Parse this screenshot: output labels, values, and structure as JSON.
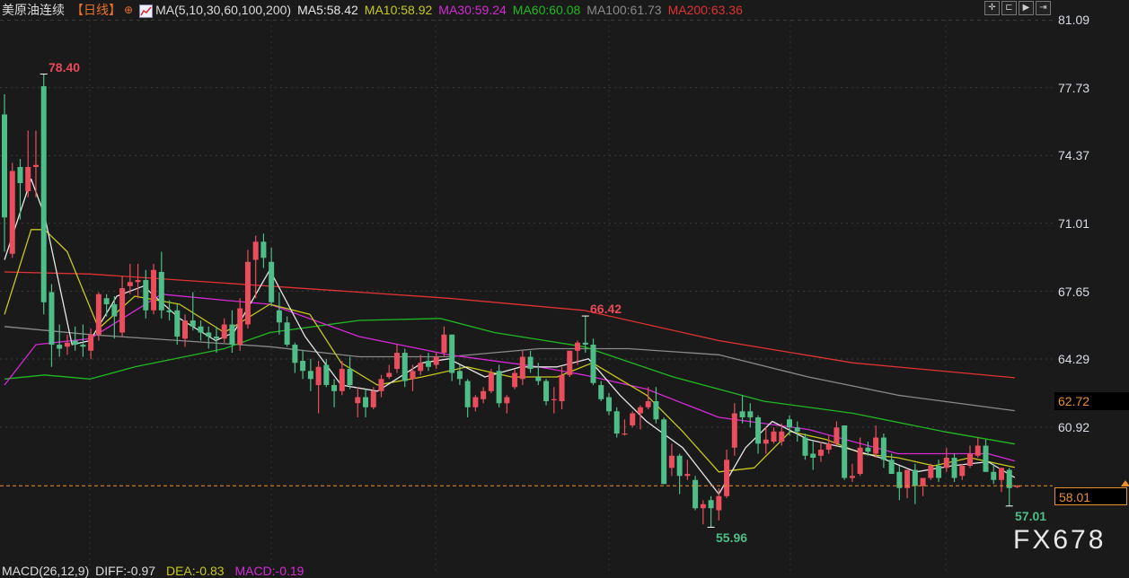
{
  "header": {
    "instrument": "美原油连续",
    "period": "【日线】",
    "ma_params": "MA(5,10,30,60,100,200)",
    "ma_values": [
      {
        "label": "MA5:58.42",
        "color": "#e6e6e6"
      },
      {
        "label": "MA10:58.92",
        "color": "#c8c81e"
      },
      {
        "label": "MA30:59.24",
        "color": "#d42ad4"
      },
      {
        "label": "MA60:60.08",
        "color": "#22b822"
      },
      {
        "label": "MA100:61.73",
        "color": "#8a8a8a"
      },
      {
        "label": "MA200:63.36",
        "color": "#e03232"
      }
    ],
    "toolbar_icons": [
      "crosshair-icon",
      "zoom-left-icon",
      "play-icon",
      "exit-right-icon"
    ]
  },
  "colors": {
    "up": "#ea4d5c",
    "down": "#4fbd88",
    "background": "#1a1a1a",
    "last_price": "#e8902e"
  },
  "price_axis": {
    "ticks": [
      "81.09",
      "77.73",
      "74.37",
      "71.01",
      "67.65",
      "64.29",
      "60.92"
    ],
    "highlight_label": "62.72",
    "last_price_label": "58.01"
  },
  "annotations": {
    "high": "78.40",
    "mid_high": "66.42",
    "low": "55.96",
    "recent_low": "57.01"
  },
  "watermark": "FX678",
  "indicator": {
    "title": "MACD(26,12,9)",
    "diff": "DIFF:-0.97",
    "dea": "DEA:-0.83",
    "macd": "MACD:-0.19"
  },
  "chart_data": {
    "type": "candlestick",
    "ylim": [
      55.0,
      81.09
    ],
    "last_price": 58.01,
    "ohlc": [
      [
        76.4,
        77.4,
        69.6,
        71.3
      ],
      [
        69.5,
        74.0,
        69.3,
        73.6
      ],
      [
        73.8,
        74.2,
        71.2,
        73.0
      ],
      [
        72.6,
        75.6,
        72.3,
        73.8
      ],
      [
        73.8,
        75.6,
        72.3,
        73.9
      ],
      [
        77.8,
        78.4,
        66.5,
        67.1
      ],
      [
        67.6,
        68.0,
        63.9,
        65.0
      ],
      [
        65.0,
        66.0,
        64.4,
        64.8
      ],
      [
        64.9,
        65.5,
        64.5,
        65.1
      ],
      [
        65.2,
        65.9,
        64.7,
        65.0
      ],
      [
        65.0,
        66.0,
        64.4,
        64.9
      ],
      [
        64.7,
        65.8,
        64.3,
        65.5
      ],
      [
        65.5,
        67.6,
        65.2,
        67.5
      ],
      [
        67.3,
        67.5,
        66.4,
        67.0
      ],
      [
        67.0,
        67.4,
        65.3,
        66.4
      ],
      [
        65.6,
        68.4,
        65.4,
        67.8
      ],
      [
        67.9,
        69.0,
        67.5,
        68.1
      ],
      [
        68.1,
        69.0,
        67.3,
        68.2
      ],
      [
        68.2,
        68.7,
        66.3,
        66.7
      ],
      [
        66.7,
        69.0,
        66.5,
        68.7
      ],
      [
        68.6,
        69.6,
        66.3,
        66.7
      ],
      [
        66.7,
        67.2,
        66.2,
        66.6
      ],
      [
        66.7,
        67.0,
        65.0,
        65.4
      ],
      [
        65.3,
        66.5,
        64.9,
        66.2
      ],
      [
        66.2,
        67.6,
        65.7,
        65.9
      ],
      [
        65.9,
        66.2,
        65.2,
        65.6
      ],
      [
        65.6,
        65.9,
        64.8,
        65.4
      ],
      [
        65.4,
        65.9,
        64.6,
        65.3
      ],
      [
        65.3,
        66.3,
        65.1,
        66.0
      ],
      [
        66.0,
        66.7,
        64.6,
        65.0
      ],
      [
        65.0,
        67.3,
        64.7,
        66.8
      ],
      [
        66.0,
        69.7,
        65.8,
        69.1
      ],
      [
        69.2,
        70.4,
        67.3,
        70.1
      ],
      [
        70.1,
        70.5,
        68.8,
        69.3
      ],
      [
        69.1,
        69.8,
        66.9,
        67.1
      ],
      [
        66.7,
        67.6,
        65.5,
        66.1
      ],
      [
        66.1,
        66.4,
        64.9,
        65.0
      ],
      [
        65.0,
        65.1,
        63.6,
        64.1
      ],
      [
        64.2,
        64.7,
        63.3,
        63.7
      ],
      [
        63.7,
        64.3,
        62.7,
        63.3
      ],
      [
        63.0,
        64.2,
        61.6,
        63.9
      ],
      [
        64.0,
        64.3,
        62.9,
        63.0
      ],
      [
        63.0,
        63.3,
        61.9,
        62.7
      ],
      [
        62.7,
        64.2,
        62.5,
        63.8
      ],
      [
        63.8,
        64.4,
        62.8,
        63.0
      ],
      [
        62.1,
        62.9,
        61.4,
        62.4
      ],
      [
        62.4,
        62.8,
        61.4,
        61.9
      ],
      [
        61.9,
        62.9,
        61.8,
        62.7
      ],
      [
        62.7,
        63.5,
        62.4,
        63.3
      ],
      [
        63.4,
        64.0,
        63.3,
        63.6
      ],
      [
        63.8,
        65.0,
        63.6,
        64.6
      ],
      [
        64.6,
        64.8,
        62.9,
        63.2
      ],
      [
        63.3,
        64.0,
        62.7,
        63.7
      ],
      [
        63.7,
        64.5,
        63.5,
        64.1
      ],
      [
        64.2,
        64.6,
        63.7,
        63.9
      ],
      [
        64.0,
        64.6,
        63.8,
        64.4
      ],
      [
        64.6,
        65.9,
        64.4,
        65.5
      ],
      [
        65.5,
        65.5,
        63.2,
        63.6
      ],
      [
        63.7,
        64.0,
        63.0,
        63.3
      ],
      [
        63.2,
        63.3,
        61.4,
        61.9
      ],
      [
        61.9,
        62.5,
        61.7,
        62.4
      ],
      [
        62.3,
        62.9,
        62.1,
        62.7
      ],
      [
        62.7,
        63.8,
        62.6,
        63.6
      ],
      [
        63.7,
        64.0,
        61.9,
        62.1
      ],
      [
        62.1,
        62.5,
        61.6,
        62.4
      ],
      [
        62.9,
        63.8,
        62.8,
        63.6
      ],
      [
        63.3,
        64.7,
        63.0,
        64.4
      ],
      [
        64.4,
        64.7,
        63.6,
        63.8
      ],
      [
        63.4,
        64.1,
        63.0,
        63.2
      ],
      [
        63.2,
        63.3,
        62.0,
        62.2
      ],
      [
        62.3,
        62.9,
        61.6,
        62.3
      ],
      [
        62.2,
        63.9,
        61.8,
        63.5
      ],
      [
        63.5,
        64.7,
        63.4,
        64.7
      ],
      [
        64.7,
        65.2,
        64.0,
        65.1
      ],
      [
        65.1,
        66.42,
        64.6,
        65.0
      ],
      [
        65.0,
        65.3,
        63.0,
        63.1
      ],
      [
        63.0,
        63.2,
        62.2,
        62.3
      ],
      [
        62.4,
        62.6,
        61.5,
        61.7
      ],
      [
        61.7,
        61.9,
        60.4,
        60.6
      ],
      [
        60.6,
        61.3,
        60.5,
        60.6
      ],
      [
        61.0,
        61.7,
        60.9,
        61.6
      ],
      [
        61.6,
        62.0,
        60.8,
        61.9
      ],
      [
        61.9,
        62.9,
        61.8,
        62.2
      ],
      [
        62.2,
        62.9,
        61.1,
        61.3
      ],
      [
        61.3,
        61.4,
        58.1,
        58.1
      ],
      [
        58.9,
        60.1,
        58.5,
        59.5
      ],
      [
        59.5,
        59.6,
        57.6,
        58.5
      ],
      [
        58.5,
        59.3,
        58.3,
        58.6
      ],
      [
        58.3,
        58.5,
        56.8,
        56.9
      ],
      [
        56.9,
        57.3,
        56.1,
        57.1
      ],
      [
        57.3,
        57.5,
        55.96,
        56.9
      ],
      [
        56.8,
        57.9,
        56.3,
        57.5
      ],
      [
        57.5,
        59.8,
        57.4,
        59.3
      ],
      [
        59.9,
        62.1,
        59.5,
        61.6
      ],
      [
        61.7,
        62.5,
        61.1,
        61.4
      ],
      [
        61.7,
        62.1,
        60.9,
        61.4
      ],
      [
        61.4,
        61.5,
        59.6,
        60.1
      ],
      [
        60.1,
        60.9,
        59.6,
        60.3
      ],
      [
        60.2,
        60.9,
        60.1,
        60.7
      ],
      [
        60.2,
        61.1,
        60.0,
        60.7
      ],
      [
        61.3,
        61.5,
        60.5,
        60.9
      ],
      [
        60.9,
        61.2,
        60.2,
        60.7
      ],
      [
        60.4,
        60.6,
        59.3,
        59.5
      ],
      [
        59.6,
        60.2,
        58.8,
        59.4
      ],
      [
        59.5,
        60.2,
        59.2,
        59.8
      ],
      [
        59.8,
        60.5,
        59.6,
        60.1
      ],
      [
        60.1,
        61.2,
        60.0,
        60.9
      ],
      [
        61.0,
        61.0,
        58.3,
        58.4
      ],
      [
        58.4,
        59.1,
        58.2,
        58.5
      ],
      [
        58.6,
        60.4,
        58.5,
        59.9
      ],
      [
        59.9,
        60.2,
        59.5,
        59.7
      ],
      [
        59.6,
        61.0,
        59.4,
        60.4
      ],
      [
        60.4,
        60.6,
        58.9,
        59.3
      ],
      [
        59.3,
        59.6,
        58.6,
        58.6
      ],
      [
        58.7,
        59.0,
        57.3,
        57.9
      ],
      [
        57.9,
        58.8,
        57.4,
        58.8
      ],
      [
        58.8,
        59.1,
        57.1,
        58.0
      ],
      [
        58.0,
        58.4,
        57.5,
        58.4
      ],
      [
        58.4,
        59.1,
        58.3,
        59.0
      ],
      [
        59.0,
        59.3,
        58.2,
        58.4
      ],
      [
        58.9,
        59.9,
        58.7,
        59.4
      ],
      [
        59.4,
        59.6,
        58.2,
        58.4
      ],
      [
        58.5,
        59.1,
        58.3,
        59.0
      ],
      [
        59.0,
        60.0,
        58.9,
        59.6
      ],
      [
        59.5,
        60.4,
        59.4,
        60.0
      ],
      [
        60.0,
        60.3,
        58.7,
        58.7
      ],
      [
        58.7,
        59.1,
        58.1,
        58.3
      ],
      [
        58.3,
        58.9,
        57.7,
        58.9
      ],
      [
        58.8,
        58.9,
        57.01,
        57.9
      ],
      [
        57.95,
        58.05,
        57.9,
        58.01
      ]
    ],
    "moving_averages": [
      {
        "name": "MA5",
        "color": "#e6e6e6",
        "points": [
          [
            0,
            69.2
          ],
          [
            3.4,
            73.2
          ],
          [
            5.1,
            71.4
          ],
          [
            8.6,
            65.0
          ],
          [
            10.9,
            65.2
          ],
          [
            14.3,
            67.4
          ],
          [
            17.7,
            67.9
          ],
          [
            22.3,
            66.3
          ],
          [
            26.9,
            65.2
          ],
          [
            29.2,
            65.6
          ],
          [
            33.8,
            68.7
          ],
          [
            38.3,
            65.4
          ],
          [
            42.9,
            63.0
          ],
          [
            47.5,
            62.7
          ],
          [
            53.2,
            64.1
          ],
          [
            56.6,
            64.3
          ],
          [
            61.2,
            63.4
          ],
          [
            65.8,
            63.9
          ],
          [
            70.4,
            63.9
          ],
          [
            74.4,
            64.3
          ],
          [
            78.4,
            62.5
          ],
          [
            81.8,
            61.2
          ],
          [
            86.4,
            59.9
          ],
          [
            91,
            57.6
          ],
          [
            94.4,
            59.9
          ],
          [
            97.8,
            61.2
          ],
          [
            102.4,
            60.3
          ],
          [
            107,
            59.9
          ],
          [
            111.6,
            59.4
          ],
          [
            116.1,
            58.7
          ],
          [
            120.7,
            59.0
          ],
          [
            125.3,
            59.2
          ],
          [
            128.7,
            58.42
          ]
        ]
      },
      {
        "name": "MA10",
        "color": "#c8c81e",
        "points": [
          [
            0,
            66.5
          ],
          [
            3.4,
            70.7
          ],
          [
            5.1,
            70.7
          ],
          [
            8,
            69.6
          ],
          [
            12,
            65.8
          ],
          [
            16.6,
            67.4
          ],
          [
            22.3,
            67.0
          ],
          [
            28,
            65.6
          ],
          [
            33.8,
            67.0
          ],
          [
            38.9,
            66.5
          ],
          [
            42.9,
            64.1
          ],
          [
            47.5,
            63.0
          ],
          [
            53.2,
            63.4
          ],
          [
            58.9,
            63.9
          ],
          [
            64.6,
            63.4
          ],
          [
            70.4,
            63.4
          ],
          [
            74.9,
            64.1
          ],
          [
            81.8,
            62.5
          ],
          [
            86.4,
            60.7
          ],
          [
            91,
            58.7
          ],
          [
            95.5,
            58.9
          ],
          [
            100.1,
            60.7
          ],
          [
            104.7,
            60.3
          ],
          [
            109.3,
            59.6
          ],
          [
            113.8,
            59.4
          ],
          [
            118.4,
            59.0
          ],
          [
            123,
            59.4
          ],
          [
            128.7,
            58.92
          ]
        ]
      },
      {
        "name": "MA30",
        "color": "#d42ad4",
        "points": [
          [
            0,
            63.0
          ],
          [
            4,
            65.0
          ],
          [
            10.9,
            65.3
          ],
          [
            20,
            67.5
          ],
          [
            28,
            67.2
          ],
          [
            33.8,
            67.0
          ],
          [
            45.2,
            65.4
          ],
          [
            56.6,
            64.5
          ],
          [
            68.1,
            63.9
          ],
          [
            73.8,
            63.5
          ],
          [
            81.8,
            62.8
          ],
          [
            91,
            61.4
          ],
          [
            102.4,
            60.8
          ],
          [
            113.8,
            59.6
          ],
          [
            119.6,
            59.6
          ],
          [
            125.3,
            59.6
          ],
          [
            128.7,
            59.24
          ]
        ]
      },
      {
        "name": "MA60",
        "color": "#22b822",
        "points": [
          [
            0,
            63.3
          ],
          [
            5.1,
            63.5
          ],
          [
            10.9,
            63.3
          ],
          [
            16.6,
            63.9
          ],
          [
            28,
            64.8
          ],
          [
            33.8,
            65.6
          ],
          [
            45.2,
            66.2
          ],
          [
            55.5,
            66.3
          ],
          [
            62.4,
            65.6
          ],
          [
            73.8,
            64.9
          ],
          [
            85.2,
            63.4
          ],
          [
            96.7,
            62.2
          ],
          [
            108.1,
            61.6
          ],
          [
            119.6,
            60.7
          ],
          [
            128.7,
            60.08
          ]
        ]
      },
      {
        "name": "MA100",
        "color": "#8a8a8a",
        "points": [
          [
            0,
            65.9
          ],
          [
            10.9,
            65.5
          ],
          [
            22.3,
            65.2
          ],
          [
            33.8,
            64.9
          ],
          [
            45.2,
            64.4
          ],
          [
            56.6,
            64.4
          ],
          [
            68.1,
            64.8
          ],
          [
            79.5,
            64.8
          ],
          [
            91,
            64.5
          ],
          [
            102.4,
            63.4
          ],
          [
            113.8,
            62.5
          ],
          [
            128.7,
            61.73
          ]
        ]
      },
      {
        "name": "MA200",
        "color": "#e03232",
        "points": [
          [
            0,
            68.6
          ],
          [
            10.9,
            68.5
          ],
          [
            33.8,
            67.9
          ],
          [
            56.6,
            67.3
          ],
          [
            73.8,
            66.7
          ],
          [
            91,
            65.2
          ],
          [
            108.1,
            64.1
          ],
          [
            128.7,
            63.36
          ]
        ]
      }
    ]
  }
}
